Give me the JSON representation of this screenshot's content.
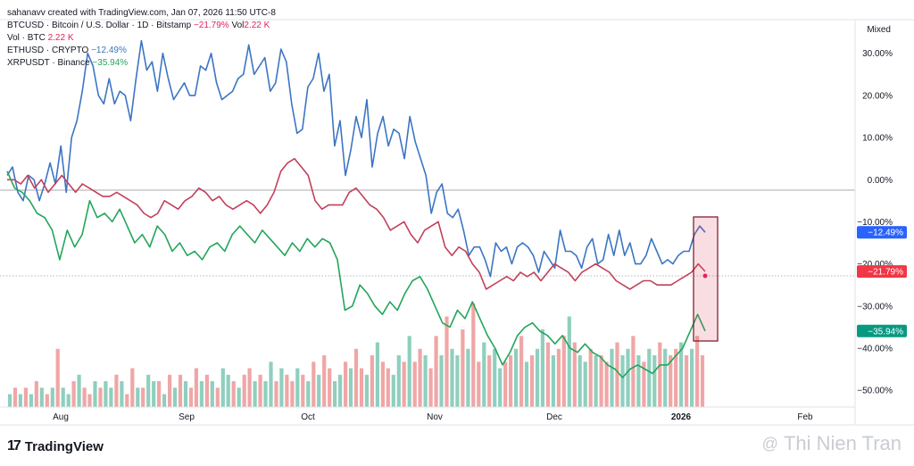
{
  "header": {
    "line0": "sahanavv created with TradingView.com, Jan 07, 2026 11:50 UTC-8",
    "series_rows": [
      {
        "label": "BTCUSD · Bitcoin / U.S. Dollar · 1D · Bitstamp",
        "value": "−21.79%",
        "extra_label": "Vol",
        "extra_value": "2.22 K",
        "color": "#e4215b"
      },
      {
        "label": "Vol · BTC",
        "value": "2.22 K",
        "color": "#e4215b"
      },
      {
        "label": "ETHUSD · CRYPTO",
        "value": "−12.49%",
        "color": "#3c75c3"
      },
      {
        "label": "XRPUSDT · Binance",
        "value": "−35.94%",
        "color": "#23a55a"
      }
    ]
  },
  "scale_mode": "Mixed",
  "footer": {
    "logo_mark": "17",
    "logo_text": "TradingView"
  },
  "watermark": {
    "icon": "@",
    "text": "Thi Nien Tran"
  },
  "colors": {
    "btc": "#c2405a",
    "eth": "#3c75c3",
    "xrp": "#23a55a",
    "vol_up": "#8fcfbd",
    "vol_down": "#f0a6a6",
    "highlight": "#d1404f"
  },
  "chart_data": {
    "type": "line",
    "x_ticks": [
      "Aug",
      "Sep",
      "Oct",
      "Nov",
      "Dec",
      "2026",
      "Feb"
    ],
    "y_ticks": [
      "30.00%",
      "20.00%",
      "10.00%",
      "0.00%",
      "−10.00%",
      "−20.00%",
      "−30.00%",
      "−40.00%",
      "−50.00%"
    ],
    "y_tick_values": [
      30,
      20,
      10,
      0,
      -10,
      -20,
      -30,
      -40,
      -50
    ],
    "ylim": [
      -54,
      38
    ],
    "grid": false,
    "last_labels": [
      {
        "series": "ETHUSD",
        "text": "−12.49%",
        "value": -12.49,
        "color": "#2962ff"
      },
      {
        "series": "BTCUSD",
        "text": "−21.79%",
        "value": -21.79,
        "color": "#f23645"
      },
      {
        "series": "XRPUSDT",
        "text": "−35.94%",
        "value": -35.94,
        "color": "#089981"
      }
    ],
    "series": [
      {
        "name": "ETHUSD",
        "color": "#3c75c3",
        "values": [
          1,
          3,
          -3,
          -5,
          1,
          0,
          -5,
          -1,
          4,
          -1,
          8,
          -3,
          10,
          14,
          21,
          30,
          27,
          20,
          18,
          24,
          18,
          21,
          20,
          14,
          24,
          33,
          26,
          28,
          21,
          30,
          24,
          19,
          21,
          23,
          20,
          20,
          27,
          26,
          30,
          23,
          19,
          20,
          21,
          24,
          25,
          32,
          25,
          27,
          29,
          21,
          23,
          31,
          28,
          18,
          11,
          12,
          22,
          24,
          30,
          21,
          25,
          8,
          14,
          1,
          7,
          15,
          10,
          19,
          3,
          11,
          15,
          8,
          12,
          11,
          5,
          15,
          9,
          5,
          1,
          -8,
          -3,
          -1,
          -8,
          -9,
          -7,
          -12,
          -18,
          -16,
          -16,
          -19,
          -23,
          -15,
          -17,
          -16,
          -20,
          -16,
          -15,
          -16,
          -18,
          -22,
          -17,
          -19,
          -21,
          -12,
          -17,
          -17,
          -18,
          -21,
          -16,
          -14,
          -20,
          -19,
          -13,
          -18,
          -12,
          -18,
          -15,
          -20,
          -20,
          -18,
          -14,
          -17,
          -20,
          -19,
          -20,
          -18,
          -17,
          -17,
          -13,
          -11,
          -12.49
        ]
      },
      {
        "name": "BTCUSD",
        "color": "#c2405a",
        "values": [
          0,
          0,
          -1,
          1,
          -2,
          0,
          -3,
          -1,
          1,
          -1,
          -3,
          -1,
          -2,
          -3,
          -4,
          -4,
          -3,
          -4,
          -5,
          -6,
          -8,
          -9,
          -8,
          -5,
          -6,
          -7,
          -5,
          -4,
          -2,
          -3,
          -5,
          -4,
          -6,
          -7,
          -6,
          -5,
          -6,
          -8,
          -6,
          -3,
          2,
          4,
          5,
          3,
          1,
          -5,
          -7,
          -6,
          -6,
          -6,
          -3,
          -2,
          -4,
          -6,
          -7,
          -9,
          -12,
          -11,
          -10,
          -13,
          -15,
          -12,
          -11,
          -10,
          -16,
          -18,
          -16,
          -17,
          -20,
          -22,
          -26,
          -25,
          -24,
          -23,
          -24,
          -22,
          -23,
          -22,
          -24,
          -22,
          -20,
          -21,
          -22,
          -24,
          -22,
          -21,
          -20,
          -21,
          -22,
          -24,
          -25,
          -26,
          -25,
          -24,
          -24,
          -25,
          -25,
          -25,
          -24,
          -23,
          -22,
          -20,
          -21.79
        ]
      },
      {
        "name": "XRPUSDT",
        "color": "#23a55a",
        "values": [
          2,
          -2,
          -3,
          -5,
          -8,
          -9,
          -12,
          -19,
          -12,
          -16,
          -13,
          -5,
          -9,
          -8,
          -10,
          -7,
          -11,
          -15,
          -13,
          -16,
          -11,
          -13,
          -17,
          -15,
          -18,
          -17,
          -19,
          -16,
          -15,
          -17,
          -13,
          -11,
          -13,
          -15,
          -12,
          -14,
          -16,
          -18,
          -15,
          -17,
          -14,
          -16,
          -14,
          -15,
          -19,
          -31,
          -30,
          -25,
          -27,
          -30,
          -32,
          -29,
          -31,
          -27,
          -24,
          -23,
          -26,
          -30,
          -34,
          -35,
          -31,
          -33,
          -29,
          -33,
          -37,
          -40,
          -44,
          -41,
          -37,
          -35,
          -34,
          -36,
          -37,
          -39,
          -37,
          -40,
          -41,
          -39,
          -41,
          -42,
          -44,
          -45,
          -47,
          -45,
          -44,
          -45,
          -46,
          -44,
          -44,
          -42,
          -40,
          -36,
          -32,
          -35.94
        ]
      }
    ],
    "volume": {
      "units": "relative",
      "values": [
        2,
        3,
        2,
        3,
        2,
        4,
        3,
        2,
        3,
        9,
        3,
        2,
        4,
        5,
        3,
        2,
        4,
        3,
        4,
        3,
        5,
        4,
        2,
        6,
        3,
        3,
        5,
        4,
        4,
        2,
        5,
        3,
        5,
        4,
        3,
        6,
        4,
        5,
        4,
        3,
        6,
        5,
        4,
        3,
        5,
        6,
        4,
        5,
        4,
        7,
        4,
        6,
        5,
        4,
        6,
        5,
        4,
        7,
        5,
        8,
        6,
        4,
        5,
        7,
        6,
        9,
        6,
        5,
        8,
        10,
        7,
        6,
        5,
        8,
        7,
        11,
        7,
        9,
        8,
        6,
        11,
        8,
        14,
        9,
        8,
        12,
        9,
        16,
        7,
        10,
        8,
        9,
        6,
        7,
        8,
        9,
        11,
        7,
        8,
        9,
        12,
        10,
        8,
        9,
        11,
        14,
        10,
        8,
        7,
        9,
        8,
        8,
        7,
        9,
        10,
        8,
        9,
        11,
        8,
        7,
        9,
        8,
        10,
        9,
        8,
        9,
        10,
        8,
        9,
        11,
        8
      ],
      "up_down": [
        1,
        0,
        1,
        0,
        1,
        0,
        1,
        0,
        1,
        0,
        1,
        1,
        0,
        1,
        0,
        0,
        1,
        0,
        1,
        1,
        0,
        1,
        0,
        0,
        1,
        0,
        1,
        1,
        0,
        1,
        0,
        1,
        0,
        1,
        0,
        0,
        1,
        0,
        1,
        0,
        1,
        1,
        0,
        1,
        0,
        0,
        1,
        0,
        1,
        1,
        0,
        1,
        0,
        0,
        1,
        0,
        1,
        0,
        1,
        0,
        0,
        1,
        1,
        0,
        1,
        0,
        0,
        1,
        0,
        1,
        0,
        0,
        1,
        1,
        0,
        1,
        0,
        0,
        1,
        0,
        0,
        1,
        0,
        1,
        1,
        0,
        1,
        0,
        0,
        1,
        0,
        1,
        1,
        0,
        0,
        1,
        0,
        1,
        0,
        1,
        1,
        0,
        1,
        0,
        0,
        1,
        0,
        1,
        1,
        0,
        1,
        0,
        0,
        1,
        0,
        1,
        1,
        0,
        1,
        0,
        1,
        1,
        0,
        1,
        0,
        0,
        1,
        0,
        1,
        0,
        0
      ]
    }
  }
}
